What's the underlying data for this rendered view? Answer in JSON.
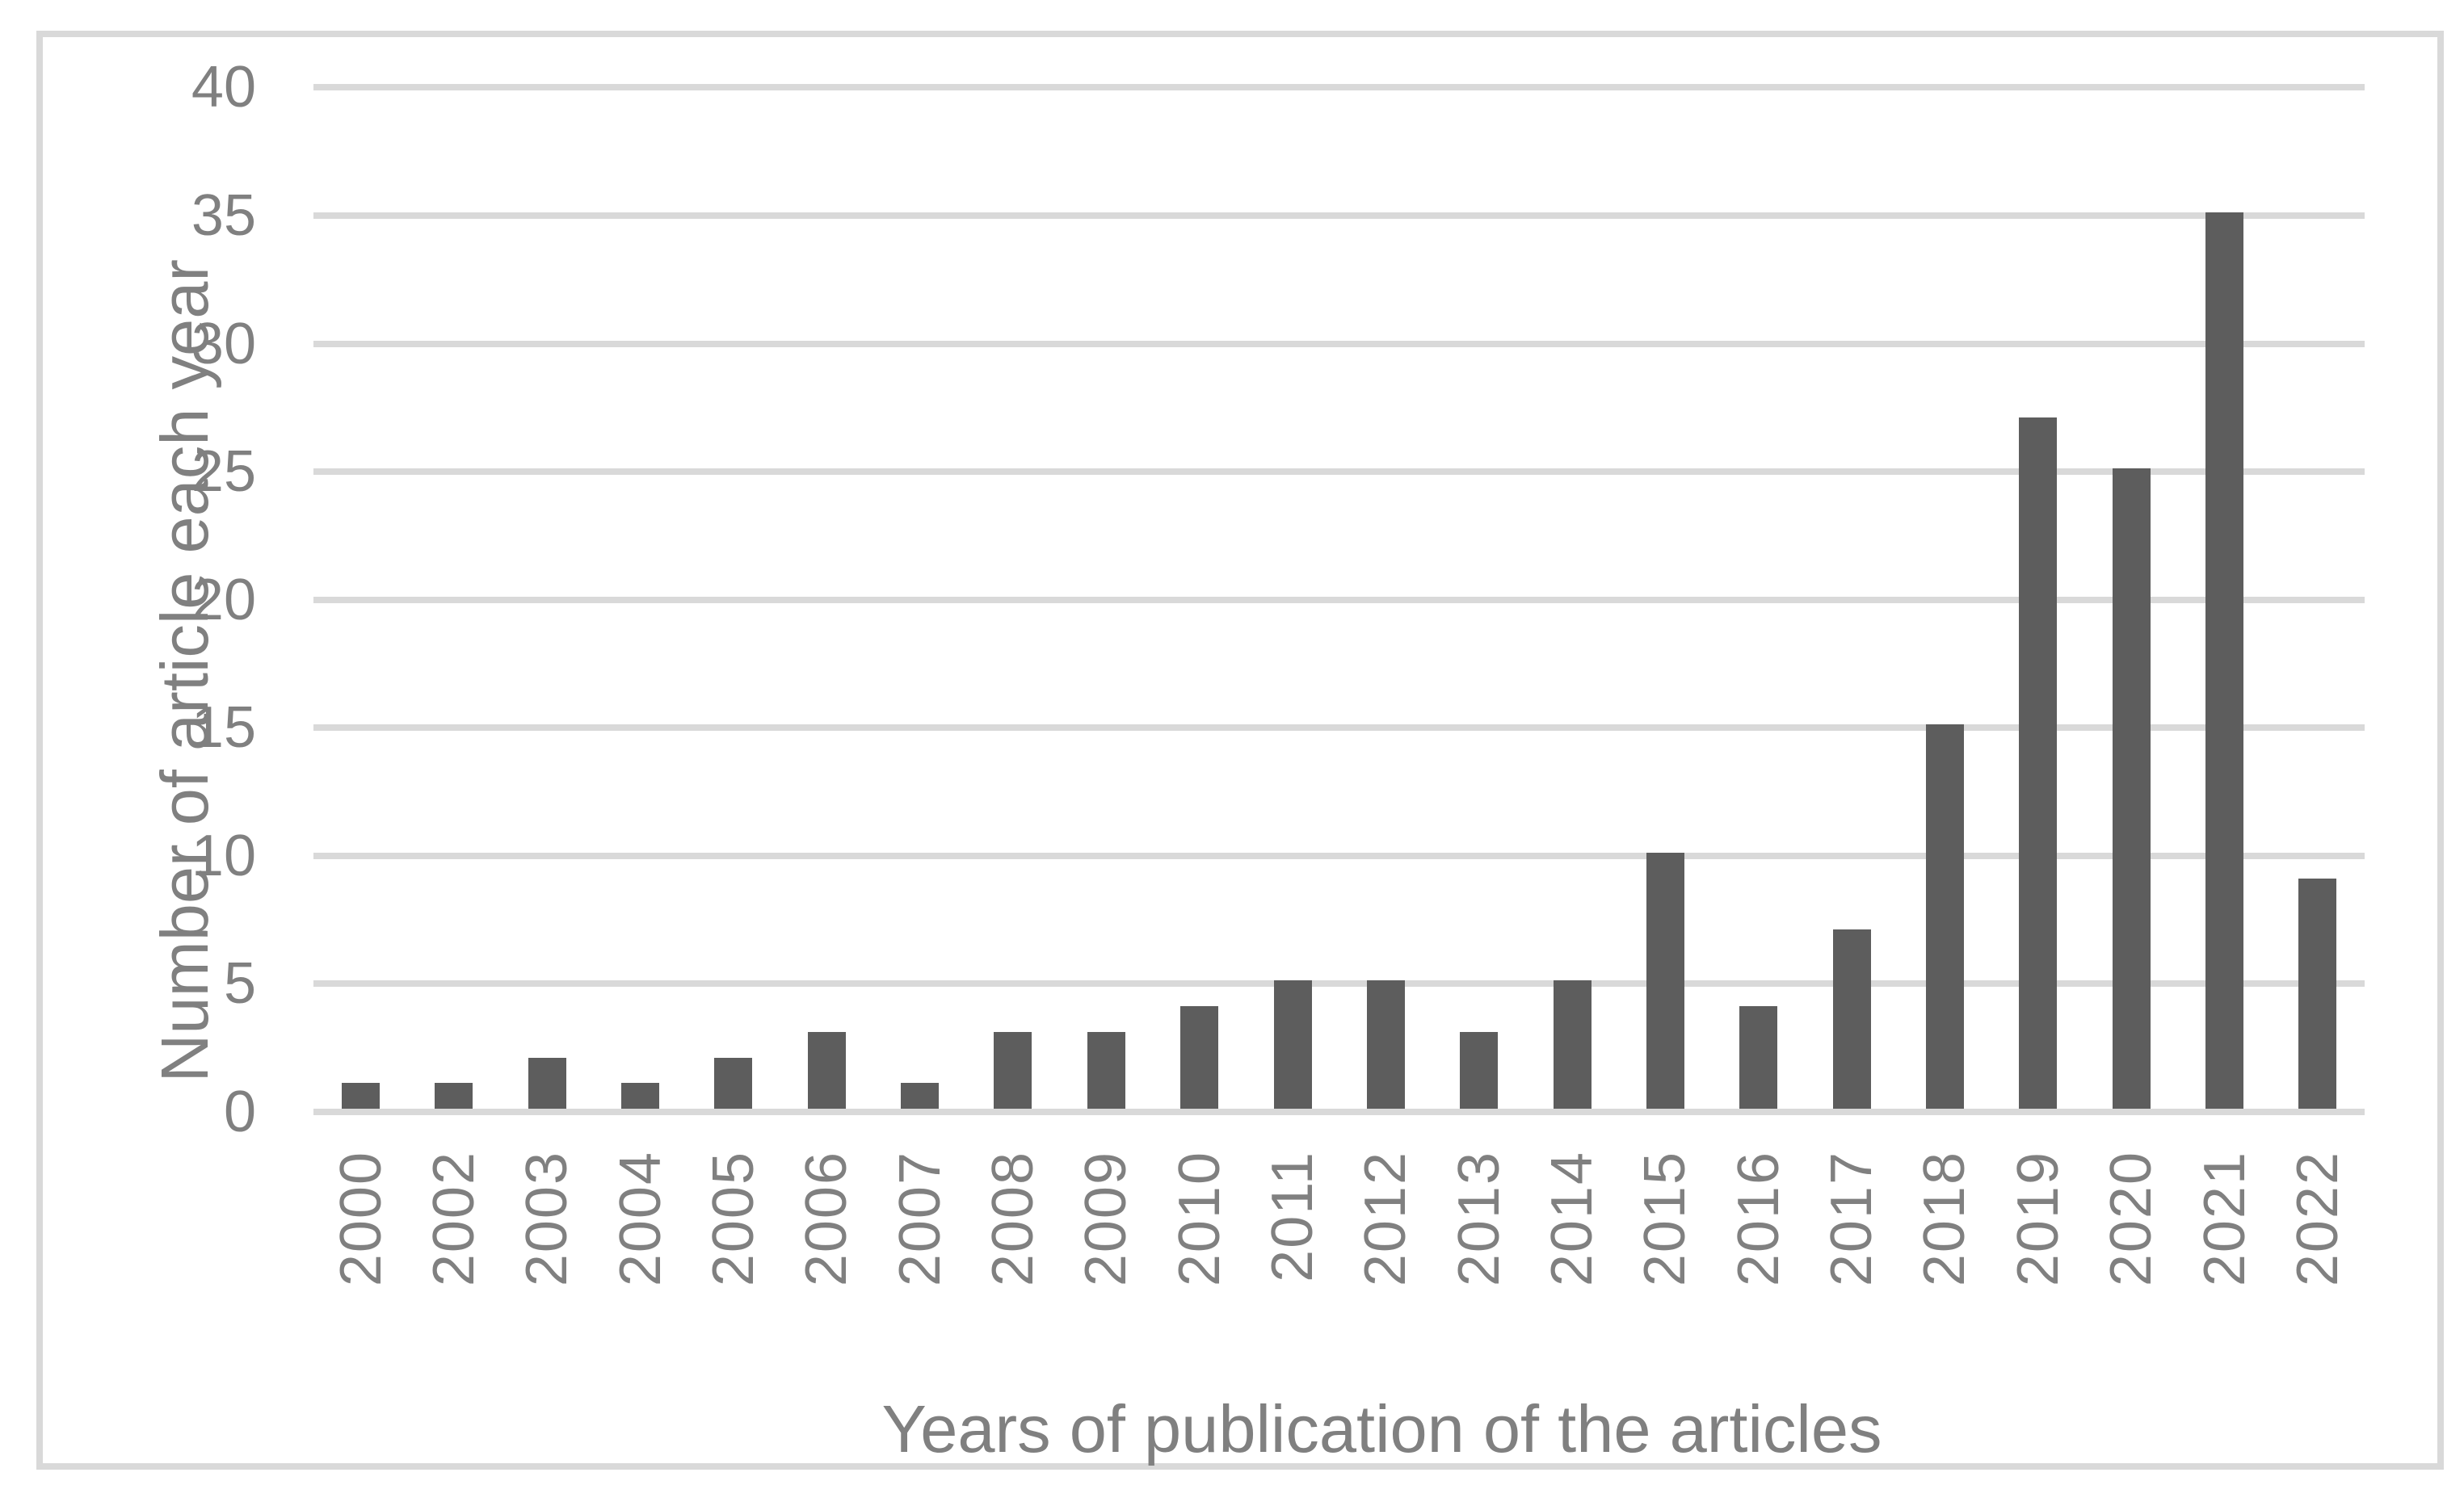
{
  "chart_data": {
    "type": "bar",
    "title": "",
    "categories": [
      "2000",
      "2002",
      "2003",
      "2004",
      "2005",
      "2006",
      "2007",
      "2008",
      "2009",
      "2010",
      "2011",
      "2012",
      "2013",
      "2014",
      "2015",
      "2016",
      "2017",
      "2018",
      "2019",
      "2020",
      "2021",
      "2022"
    ],
    "values": [
      1,
      1,
      2,
      1,
      2,
      3,
      1,
      3,
      3,
      4,
      5,
      5,
      3,
      5,
      10,
      4,
      7,
      15,
      27,
      25,
      35,
      9
    ],
    "xlabel": "Years of publication of the articles",
    "ylabel": "Number of article each year",
    "ylim": [
      0,
      40
    ],
    "yticks": [
      0,
      5,
      10,
      15,
      20,
      25,
      30,
      35,
      40
    ],
    "grid": "horizontal-only",
    "legend": "none",
    "bar_color": "#5d5d5d",
    "gridline_color": "#d9d9d9",
    "frame_color": "#d9d9d9",
    "text_color": "#808080"
  }
}
